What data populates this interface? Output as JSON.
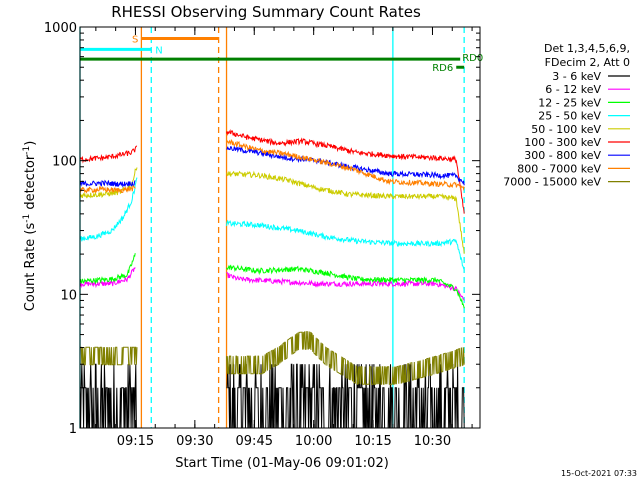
{
  "chart_data": {
    "type": "line",
    "title": "RHESSI Observing Summary Count Rates",
    "xlabel": "Start Time (01-May-06 09:01:02)",
    "ylabel_main": "Count Rate (s",
    "ylabel_sup1": "-1",
    "ylabel_mid": " detector",
    "ylabel_sup2": "-1",
    "ylabel_end": ")",
    "yscale": "log",
    "ylim": [
      1,
      1000
    ],
    "xlim_minutes": [
      0,
      101
    ],
    "y_ticks": [
      {
        "value": 1,
        "label": "1"
      },
      {
        "value": 10,
        "label": "10"
      },
      {
        "value": 100,
        "label": "100"
      },
      {
        "value": 1000,
        "label": "1000"
      }
    ],
    "x_ticks": [
      {
        "minute": 14,
        "label": "09:15"
      },
      {
        "minute": 29,
        "label": "09:30"
      },
      {
        "minute": 44,
        "label": "09:45"
      },
      {
        "minute": 59,
        "label": "10:00"
      },
      {
        "minute": 74,
        "label": "10:15"
      },
      {
        "minute": 89,
        "label": "10:30"
      }
    ],
    "legend_header": [
      "Det 1,3,4,5,6,9,",
      "FDecim 2, Att 0"
    ],
    "series": [
      {
        "name": "3 - 6 keV",
        "color": "#000000",
        "seg1": [
          [
            0,
            1.5
          ],
          [
            12,
            1.5
          ],
          [
            14.5,
            1.6
          ]
        ],
        "seg2": [
          [
            37,
            1.5
          ],
          [
            50,
            1.5
          ],
          [
            60,
            1.6
          ],
          [
            75,
            1.6
          ],
          [
            88,
            1.5
          ],
          [
            97,
            1.5
          ]
        ]
      },
      {
        "name": "6 - 12 keV",
        "color": "#ff00ff",
        "seg1": [
          [
            0,
            12
          ],
          [
            8,
            12
          ],
          [
            12,
            13
          ],
          [
            14,
            16
          ]
        ],
        "seg2": [
          [
            37,
            14
          ],
          [
            40,
            13
          ],
          [
            50,
            12.5
          ],
          [
            60,
            12
          ],
          [
            70,
            12
          ],
          [
            80,
            12
          ],
          [
            90,
            12
          ],
          [
            95,
            11
          ],
          [
            97,
            9
          ]
        ]
      },
      {
        "name": "12 - 25 keV",
        "color": "#00ff00",
        "seg1": [
          [
            0,
            12.5
          ],
          [
            8,
            13
          ],
          [
            12,
            14
          ],
          [
            14,
            20
          ]
        ],
        "seg2": [
          [
            37,
            16
          ],
          [
            45,
            15
          ],
          [
            55,
            15.5
          ],
          [
            62,
            14.5
          ],
          [
            70,
            13
          ],
          [
            80,
            12.8
          ],
          [
            90,
            12.8
          ],
          [
            95,
            11
          ],
          [
            97,
            8
          ]
        ]
      },
      {
        "name": "25 - 50 keV",
        "color": "#00ffff",
        "seg1": [
          [
            0,
            26
          ],
          [
            4,
            27
          ],
          [
            8,
            30
          ],
          [
            11,
            38
          ],
          [
            13,
            50
          ],
          [
            14.5,
            75
          ]
        ],
        "seg2": [
          [
            37,
            34
          ],
          [
            45,
            33
          ],
          [
            55,
            30
          ],
          [
            62,
            27
          ],
          [
            70,
            25
          ],
          [
            80,
            24
          ],
          [
            90,
            24
          ],
          [
            95,
            25
          ],
          [
            97,
            15
          ]
        ]
      },
      {
        "name": "50 - 100 keV",
        "color": "#cccc00",
        "seg1": [
          [
            0,
            55
          ],
          [
            6,
            56
          ],
          [
            10,
            58
          ],
          [
            13,
            65
          ],
          [
            14.5,
            95
          ]
        ],
        "seg2": [
          [
            37,
            80
          ],
          [
            45,
            78
          ],
          [
            52,
            72
          ],
          [
            60,
            62
          ],
          [
            68,
            56
          ],
          [
            78,
            54
          ],
          [
            90,
            54
          ],
          [
            95,
            52
          ],
          [
            97,
            20
          ]
        ]
      },
      {
        "name": "100 - 300 keV",
        "color": "#ff0000",
        "seg1": [
          [
            0,
            102
          ],
          [
            6,
            105
          ],
          [
            10,
            110
          ],
          [
            13,
            115
          ],
          [
            14.5,
            125
          ]
        ],
        "seg2": [
          [
            37,
            165
          ],
          [
            42,
            150
          ],
          [
            50,
            135
          ],
          [
            56,
            140
          ],
          [
            62,
            130
          ],
          [
            70,
            115
          ],
          [
            80,
            108
          ],
          [
            90,
            105
          ],
          [
            95,
            102
          ],
          [
            97,
            40
          ]
        ]
      },
      {
        "name": "300 - 800 keV",
        "color": "#0000ff",
        "seg1": [
          [
            0,
            67
          ],
          [
            6,
            68
          ],
          [
            10,
            67
          ],
          [
            14,
            68
          ]
        ],
        "seg2": [
          [
            37,
            125
          ],
          [
            45,
            115
          ],
          [
            52,
            105
          ],
          [
            60,
            100
          ],
          [
            68,
            90
          ],
          [
            78,
            80
          ],
          [
            90,
            78
          ],
          [
            95,
            77
          ],
          [
            97,
            68
          ]
        ]
      },
      {
        "name": "800 - 7000 keV",
        "color": "#ff8000",
        "seg1": [
          [
            0,
            60
          ],
          [
            6,
            61
          ],
          [
            10,
            60
          ],
          [
            14,
            62
          ]
        ],
        "seg2": [
          [
            37,
            140
          ],
          [
            45,
            120
          ],
          [
            52,
            112
          ],
          [
            60,
            100
          ],
          [
            68,
            88
          ],
          [
            78,
            70
          ],
          [
            90,
            67
          ],
          [
            95,
            66
          ],
          [
            97,
            62
          ]
        ]
      },
      {
        "name": "7000 - 15000 keV",
        "color": "#808000",
        "seg1": [
          [
            0,
            3.5
          ],
          [
            14.5,
            3.5
          ]
        ],
        "seg2": [
          [
            37,
            3
          ],
          [
            46,
            3
          ],
          [
            50,
            3.5
          ],
          [
            55,
            4.5
          ],
          [
            58,
            4.6
          ],
          [
            62,
            3.5
          ],
          [
            70,
            2.5
          ],
          [
            80,
            2.5
          ],
          [
            90,
            3
          ],
          [
            97,
            3.5
          ]
        ]
      }
    ],
    "annotations": [
      {
        "label": "S",
        "color": "#ff8000",
        "start": 15.5,
        "end": 35,
        "y": 820
      },
      {
        "label": "N",
        "color": "#00ffff",
        "start": 0,
        "end": 18,
        "y": 680
      },
      {
        "label": "RD0",
        "color": "#008000",
        "start": 0,
        "end": 96,
        "y": 575
      },
      {
        "label": "RD6",
        "color": "#008000",
        "start": 95,
        "end": 97,
        "y": 500
      }
    ],
    "vertical_lines": [
      {
        "minute": 0,
        "color": "#00ffff",
        "style": "solid"
      },
      {
        "minute": 15.5,
        "color": "#ff8000",
        "style": "solid"
      },
      {
        "minute": 18,
        "color": "#00ffff",
        "style": "dashed"
      },
      {
        "minute": 35,
        "color": "#ff8000",
        "style": "dashed"
      },
      {
        "minute": 37,
        "color": "#ff8000",
        "style": "solid"
      },
      {
        "minute": 79,
        "color": "#00ffff",
        "style": "solid"
      },
      {
        "minute": 97,
        "color": "#00ffff",
        "style": "dashed"
      }
    ],
    "footer_date": "15-Oct-2021 07:33"
  }
}
